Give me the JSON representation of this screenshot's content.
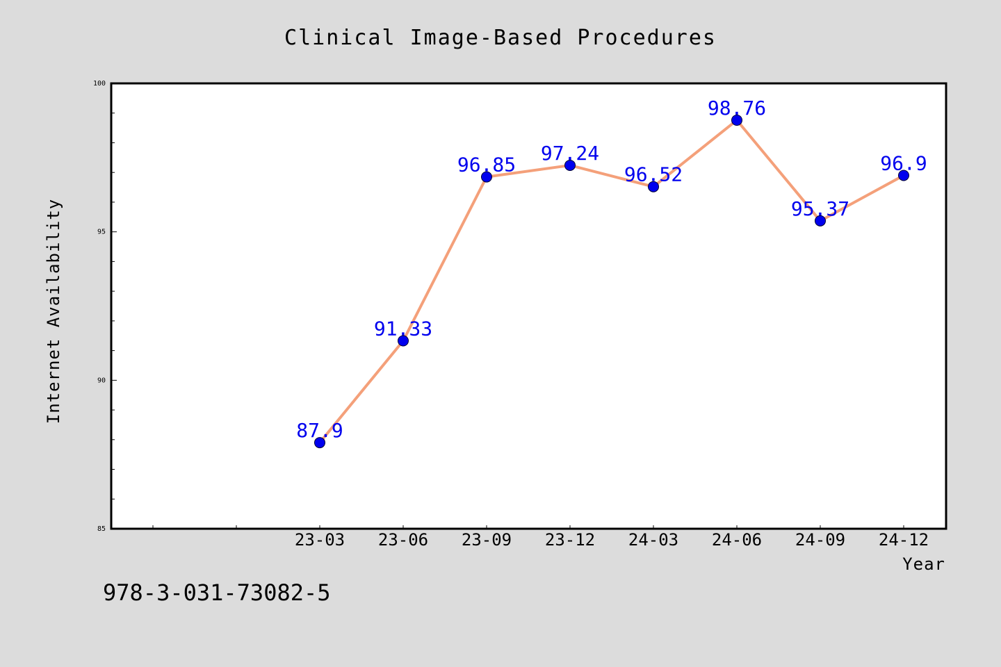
{
  "chart_data": {
    "type": "line",
    "title": "Clinical Image-Based Procedures",
    "xlabel": "Year",
    "ylabel": "Internet Availability",
    "categories": [
      "23-03",
      "23-06",
      "23-09",
      "23-12",
      "24-03",
      "24-06",
      "24-09",
      "24-12"
    ],
    "series": [
      {
        "values": [
          87.9,
          91.33,
          96.85,
          97.24,
          96.52,
          98.76,
          95.37,
          96.9
        ],
        "line_color": "#f4a07a",
        "marker_color": "#0000ee"
      }
    ],
    "data_labels": [
      "87.9",
      "91.33",
      "96.85",
      "97.24",
      "96.52",
      "98.76",
      "95.37",
      "96.9"
    ],
    "ylim": [
      85,
      100
    ],
    "y_ticks": [
      "85",
      "90",
      "95",
      "100"
    ],
    "grid": false,
    "legend": "none"
  },
  "footer": {
    "isbn": "978-3-031-73082-5"
  },
  "colors": {
    "background": "#dcdcdc",
    "plot_background": "#ffffff",
    "label_color": "#0000ee"
  }
}
